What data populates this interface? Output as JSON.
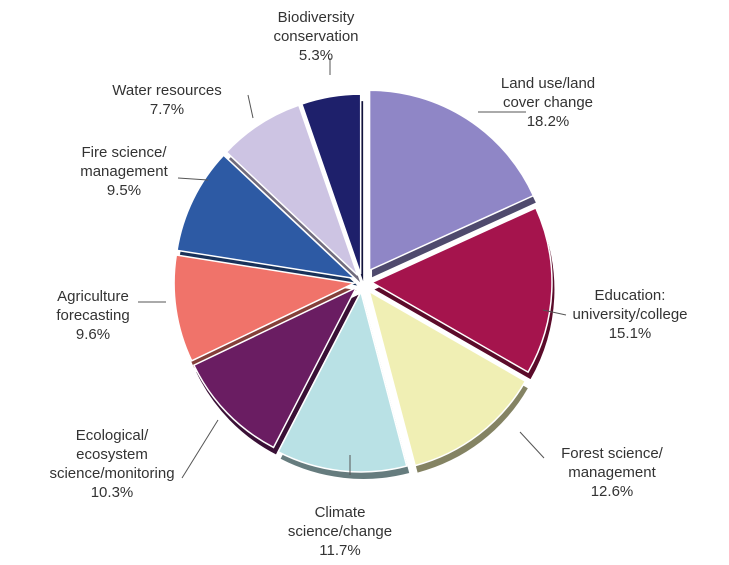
{
  "chart_data": {
    "type": "pie",
    "title": "",
    "legend": "none",
    "slices": [
      {
        "label": "Land use/land cover change",
        "lines": [
          "Land use/land",
          "cover change"
        ],
        "value": 18.2,
        "value_label": "18.2%",
        "color": "#8f86c6"
      },
      {
        "label": "Education: university/college",
        "lines": [
          "Education:",
          "university/college"
        ],
        "value": 15.1,
        "value_label": "15.1%",
        "color": "#a5144d"
      },
      {
        "label": "Forest science/ management",
        "lines": [
          "Forest science/",
          "management"
        ],
        "value": 12.6,
        "value_label": "12.6%",
        "color": "#f0efb4"
      },
      {
        "label": "Climate science/change",
        "lines": [
          "Climate",
          "science/change"
        ],
        "value": 11.7,
        "value_label": "11.7%",
        "color": "#b9e1e5"
      },
      {
        "label": "Ecological/ ecosystem science/monitoring",
        "lines": [
          "Ecological/",
          "ecosystem",
          "science/monitoring"
        ],
        "value": 10.3,
        "value_label": "10.3%",
        "color": "#6a1d62"
      },
      {
        "label": "Agriculture forecasting",
        "lines": [
          "Agriculture",
          "forecasting"
        ],
        "value": 9.6,
        "value_label": "9.6%",
        "color": "#f0736a"
      },
      {
        "label": "Fire science/ management",
        "lines": [
          "Fire science/",
          "management"
        ],
        "value": 9.5,
        "value_label": "9.5%",
        "color": "#2d5aa4"
      },
      {
        "label": "Water resources",
        "lines": [
          "Water resources"
        ],
        "value": 7.7,
        "value_label": "7.7%",
        "color": "#cdc4e3"
      },
      {
        "label": "Biodiversity conservation",
        "lines": [
          "Biodiversity",
          "conservation"
        ],
        "value": 5.3,
        "value_label": "5.3%",
        "color": "#1e206b"
      }
    ]
  }
}
